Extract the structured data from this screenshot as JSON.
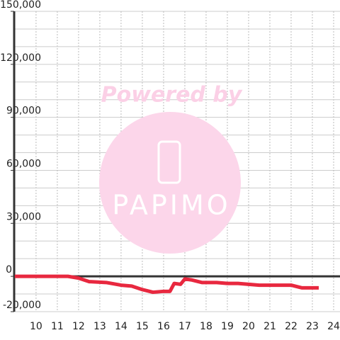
{
  "chart_data": {
    "type": "line",
    "watermark": [
      "Powered by",
      "PAPIMO"
    ],
    "x": [
      9,
      11.5,
      12,
      12.5,
      13.3,
      14,
      14.5,
      15,
      15.5,
      16,
      16.3,
      16.5,
      16.8,
      17,
      17.3,
      17.8,
      18.5,
      19,
      19.5,
      20,
      20.5,
      21,
      22,
      22.5,
      23.3
    ],
    "series": [
      {
        "color": "#e8283f",
        "values": [
          0,
          0,
          -1000,
          -3000,
          -3500,
          -5000,
          -5500,
          -7500,
          -9000,
          -8500,
          -8500,
          -4000,
          -4500,
          -1500,
          -2000,
          -3500,
          -3500,
          -4000,
          -4000,
          -4500,
          -5000,
          -5000,
          -5000,
          -6500,
          -6500
        ]
      }
    ],
    "xlim": [
      8.97,
      24.3
    ],
    "xticks": [
      10,
      11,
      12,
      13,
      14,
      15,
      16,
      17,
      18,
      19,
      20,
      21,
      22,
      23,
      24
    ],
    "ylim": [
      -20000,
      150000
    ],
    "yticks": [
      {
        "value": -20000,
        "label": "-20,000"
      },
      0,
      {
        "value": 30000,
        "label": "30,000"
      },
      {
        "value": 60000,
        "label": "60,000"
      },
      {
        "value": 90000,
        "label": "90,000"
      },
      {
        "value": 120000,
        "label": "120,000"
      },
      {
        "value": 150000,
        "label": "150,000"
      }
    ],
    "yminor_ticks": [
      -10000,
      10000,
      20000,
      40000,
      50000,
      70000,
      80000,
      100000,
      110000,
      130000,
      140000
    ],
    "grid": true
  }
}
